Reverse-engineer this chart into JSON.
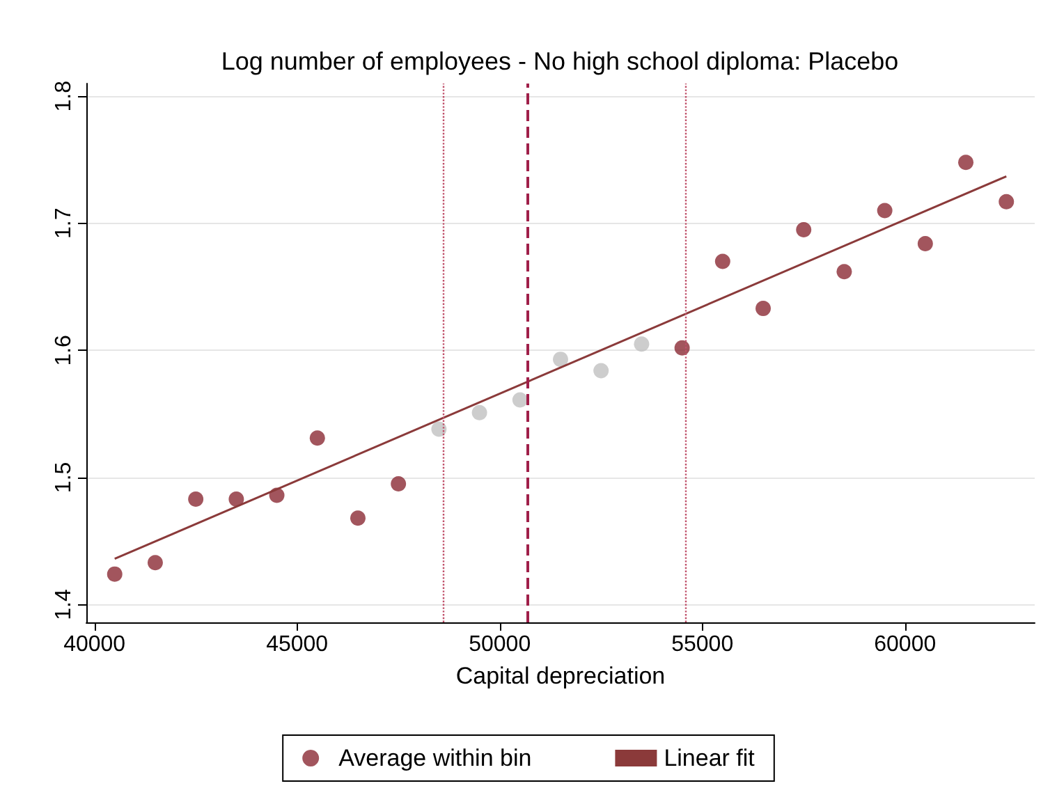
{
  "chart_data": {
    "type": "scatter",
    "title": "Log number of employees - No high school diploma: Placebo",
    "xlabel": "Capital depreciation",
    "x": [
      40500,
      41500,
      42500,
      43500,
      44500,
      45500,
      46500,
      47500,
      48500,
      49500,
      50500,
      51500,
      52500,
      53500,
      54500,
      55500,
      56500,
      57500,
      58500,
      59500,
      60500,
      61500,
      62500
    ],
    "series": [
      {
        "name": "Average within bin",
        "marker": "circle",
        "color": "#8b2a35",
        "colors": [
          "#8b2a35",
          "#8b2a35",
          "#8b2a35",
          "#8b2a35",
          "#8b2a35",
          "#8b2a35",
          "#8b2a35",
          "#8b2a35",
          "#c0c0c0",
          "#c0c0c0",
          "#c0c0c0",
          "#c0c0c0",
          "#c0c0c0",
          "#c0c0c0",
          "#8b2a35",
          "#8b2a35",
          "#8b2a35",
          "#8b2a35",
          "#8b2a35",
          "#8b2a35",
          "#8b2a35",
          "#8b2a35",
          "#8b2a35"
        ],
        "values": [
          1.424,
          1.433,
          1.483,
          1.483,
          1.486,
          1.531,
          1.468,
          1.495,
          1.538,
          1.551,
          1.561,
          1.593,
          1.584,
          1.605,
          1.602,
          1.67,
          1.633,
          1.695,
          1.662,
          1.71,
          1.684,
          1.748,
          1.717
        ]
      },
      {
        "name": "Linear fit",
        "type": "line",
        "color": "#8b3a3a",
        "x": [
          40500,
          62500
        ],
        "values": [
          1.436,
          1.737
        ]
      }
    ],
    "xlim": [
      39800,
      63200
    ],
    "xticks": [
      40000,
      45000,
      50000,
      55000,
      60000
    ],
    "ylim": [
      1.386,
      1.81
    ],
    "yticks": [
      1.4,
      1.5,
      1.6,
      1.7,
      1.8
    ],
    "grid": "y",
    "legend": "bottom",
    "ref_lines": [
      {
        "axis": "x",
        "value": 48600,
        "color": "#c0506a",
        "line_style": "dotted"
      },
      {
        "axis": "x",
        "value": 50700,
        "color": "#a0204a",
        "line_style": "dashed"
      },
      {
        "axis": "x",
        "value": 54600,
        "color": "#c0506a",
        "line_style": "dotted"
      }
    ]
  }
}
